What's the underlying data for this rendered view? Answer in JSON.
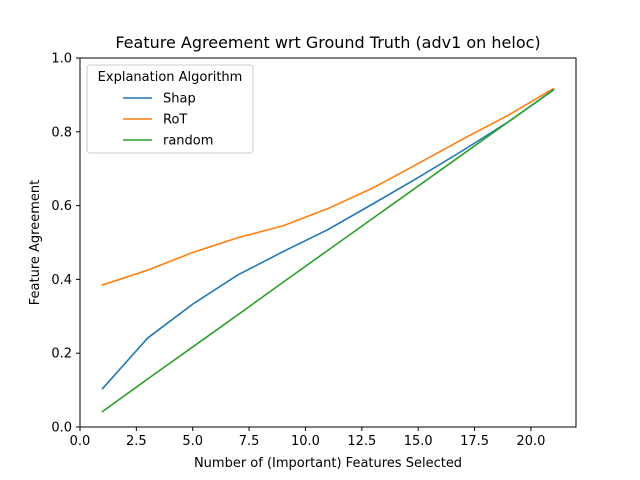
{
  "chart_data": {
    "type": "line",
    "title": "Feature Agreement wrt Ground Truth (adv1 on heloc)",
    "xlabel": "Number of (Important) Features Selected",
    "ylabel": "Feature Agreement",
    "xlim": [
      0.0,
      22.0
    ],
    "ylim": [
      0.0,
      1.0
    ],
    "xticks": [
      0.0,
      2.5,
      5.0,
      7.5,
      10.0,
      12.5,
      15.0,
      17.5,
      20.0
    ],
    "xtick_labels": [
      "0.0",
      "2.5",
      "5.0",
      "7.5",
      "10.0",
      "12.5",
      "15.0",
      "17.5",
      "20.0"
    ],
    "yticks": [
      0.0,
      0.2,
      0.4,
      0.6,
      0.8,
      1.0
    ],
    "ytick_labels": [
      "0.0",
      "0.2",
      "0.4",
      "0.6",
      "0.8",
      "1.0"
    ],
    "grid": false,
    "legend": {
      "title": "Explanation Algorithm",
      "placement": "upper-left"
    },
    "x": [
      1,
      3,
      5,
      7,
      9,
      11,
      13,
      15,
      17,
      19,
      21
    ],
    "series": [
      {
        "name": "Shap",
        "color": "#1f77b4",
        "values": [
          0.104,
          0.241,
          0.333,
          0.412,
          0.475,
          0.535,
          0.605,
          0.676,
          0.75,
          0.827,
          0.913
        ]
      },
      {
        "name": "RoT",
        "color": "#ff7f0e",
        "values": [
          0.385,
          0.425,
          0.473,
          0.513,
          0.545,
          0.592,
          0.648,
          0.714,
          0.781,
          0.845,
          0.917
        ]
      },
      {
        "name": "random",
        "color": "#2ca02c",
        "values": [
          0.042,
          0.13,
          0.217,
          0.304,
          0.392,
          0.479,
          0.566,
          0.653,
          0.74,
          0.827,
          0.914
        ]
      }
    ]
  }
}
